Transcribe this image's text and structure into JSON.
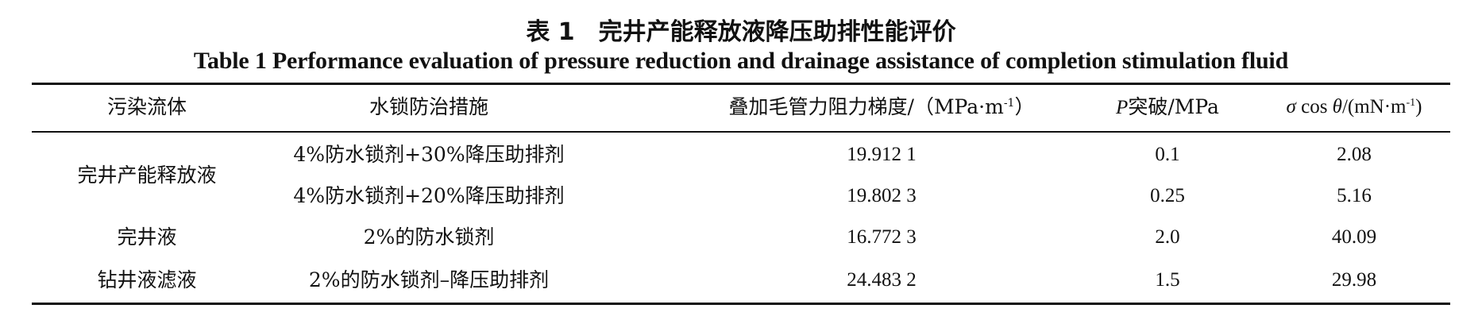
{
  "caption": {
    "cn": "表 1　完井产能释放液降压助排性能评价",
    "en": "Table 1 Performance evaluation of pressure reduction and drainage assistance of completion stimulation fluid"
  },
  "table": {
    "headers": {
      "fluid": "污染流体",
      "measure": "水锁防治措施",
      "gradient_prefix": "叠加毛管力阻力梯度/（MPa·m",
      "gradient_sup": "-1",
      "gradient_suffix": "）",
      "p_symbol": "P",
      "p_rest": "突破/MPa",
      "sigma": "σ",
      "cos": "cos",
      "theta": "θ",
      "tension_unit_prefix": "/(mN·m",
      "tension_sup": "-1",
      "tension_unit_suffix": ")"
    },
    "rows": [
      {
        "fluid": "完井产能释放液",
        "measure": "4%防水锁剂+30%降压助排剂",
        "gradient": "19.912 1",
        "p": "0.1",
        "tension": "2.08"
      },
      {
        "fluid": "",
        "measure": "4%防水锁剂+20%降压助排剂",
        "gradient": "19.802 3",
        "p": "0.25",
        "tension": "5.16"
      },
      {
        "fluid": "完井液",
        "measure": "2%的防水锁剂",
        "gradient": "16.772 3",
        "p": "2.0",
        "tension": "40.09"
      },
      {
        "fluid": "钻井液滤液",
        "measure": "2%的防水锁剂–降压助排剂",
        "gradient": "24.483 2",
        "p": "1.5",
        "tension": "29.98"
      }
    ]
  }
}
